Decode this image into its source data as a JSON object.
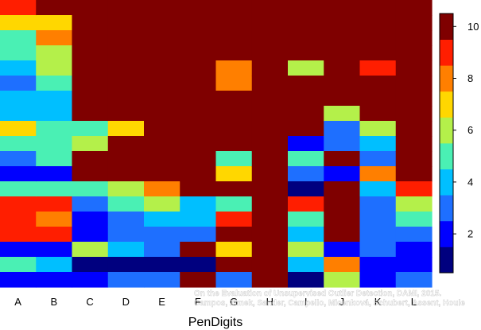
{
  "chart_data": {
    "type": "heatmap",
    "xlabel": "PenDigits",
    "categories": [
      "A",
      "B",
      "C",
      "D",
      "E",
      "F",
      "G",
      "H",
      "I",
      "J",
      "K",
      "L"
    ],
    "n_rows": 19,
    "row_order": "top-to-bottom",
    "colorbar": {
      "min": 0.5,
      "max": 10.5,
      "ticks": [
        2,
        4,
        6,
        8,
        10
      ],
      "palette": [
        "#00007F",
        "#0000FF",
        "#1E6FFF",
        "#00BFFF",
        "#4AF0B4",
        "#B4F04A",
        "#FFD700",
        "#FF7F00",
        "#FF1E00",
        "#7F0000"
      ]
    },
    "columns": {
      "A": [
        9,
        7,
        5,
        5,
        4,
        3,
        4,
        4,
        7,
        5,
        3,
        2,
        5,
        9,
        9,
        9,
        2,
        5,
        2
      ],
      "B": [
        10,
        7,
        8,
        6,
        6,
        5,
        4,
        4,
        5,
        5,
        5,
        2,
        5,
        9,
        8,
        9,
        2,
        4,
        2
      ],
      "C": [
        10,
        10,
        10,
        10,
        10,
        10,
        10,
        10,
        5,
        6,
        10,
        10,
        5,
        3,
        2,
        2,
        6,
        1,
        2
      ],
      "D": [
        10,
        10,
        10,
        10,
        10,
        10,
        10,
        10,
        7,
        10,
        10,
        10,
        6,
        5,
        3,
        3,
        4,
        1,
        3
      ],
      "E": [
        10,
        10,
        10,
        10,
        10,
        10,
        10,
        10,
        10,
        10,
        10,
        10,
        8,
        6,
        4,
        3,
        3,
        1,
        3
      ],
      "F": [
        10,
        10,
        10,
        10,
        10,
        10,
        10,
        10,
        10,
        10,
        10,
        10,
        10,
        4,
        4,
        3,
        10,
        1,
        10
      ],
      "G": [
        10,
        10,
        10,
        10,
        8,
        8,
        10,
        10,
        10,
        10,
        5,
        7,
        10,
        5,
        9,
        10,
        7,
        10,
        3
      ],
      "H": [
        10,
        10,
        10,
        10,
        10,
        10,
        10,
        10,
        10,
        10,
        10,
        10,
        10,
        10,
        10,
        10,
        10,
        10,
        10
      ],
      "I": [
        10,
        10,
        10,
        10,
        6,
        10,
        10,
        10,
        10,
        2,
        5,
        3,
        1,
        9,
        5,
        4,
        6,
        4,
        1
      ],
      "J": [
        10,
        10,
        10,
        10,
        10,
        10,
        10,
        6,
        3,
        3,
        10,
        2,
        10,
        10,
        10,
        10,
        2,
        8,
        6
      ],
      "K": [
        10,
        10,
        10,
        10,
        9,
        10,
        10,
        10,
        6,
        4,
        3,
        8,
        4,
        3,
        3,
        3,
        3,
        2,
        2
      ],
      "L": [
        10,
        10,
        10,
        10,
        10,
        10,
        10,
        10,
        10,
        10,
        10,
        10,
        9,
        6,
        5,
        3,
        2,
        2,
        3
      ]
    }
  },
  "credit": {
    "line1": "On the Evaluation of Unsupervised Outlier Detection, DAMI, 2015.",
    "line2": "Campos, Zimek, Sander, Campello, Micenková, Schubert, Assent, Houle"
  }
}
